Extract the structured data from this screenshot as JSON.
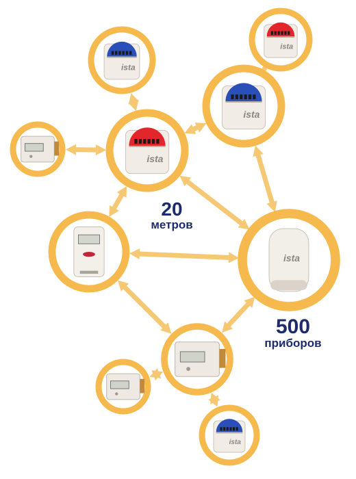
{
  "meters_label": {
    "number": "20",
    "unit": "метров"
  },
  "devices_label": {
    "number": "500",
    "unit": "приборов"
  },
  "logo_text": "ista",
  "colors": {
    "ring": "#f6b94d",
    "arrow": "#f7c874",
    "ring_fill": "#ffffff",
    "text": "#1d2b6e",
    "meter_red": "#e3262c",
    "meter_blue": "#2b4fb8"
  },
  "nodes": [
    {
      "id": "meter-top-left",
      "type": "heat-cost-allocator",
      "accent": "blue"
    },
    {
      "id": "meter-top-right",
      "type": "heat-cost-allocator",
      "accent": "red"
    },
    {
      "id": "repeater-large",
      "type": "heat-cost-allocator",
      "accent": "blue"
    },
    {
      "id": "heat-meter-left",
      "type": "heat-meter"
    },
    {
      "id": "hub-allocator",
      "type": "heat-cost-allocator",
      "accent": "red"
    },
    {
      "id": "wall-sensor",
      "type": "wall-sensor"
    },
    {
      "id": "gateway",
      "type": "gateway"
    },
    {
      "id": "heat-meter-hub",
      "type": "heat-meter"
    },
    {
      "id": "heat-meter-small",
      "type": "heat-meter"
    },
    {
      "id": "meter-bottom",
      "type": "heat-cost-allocator",
      "accent": "blue"
    }
  ]
}
